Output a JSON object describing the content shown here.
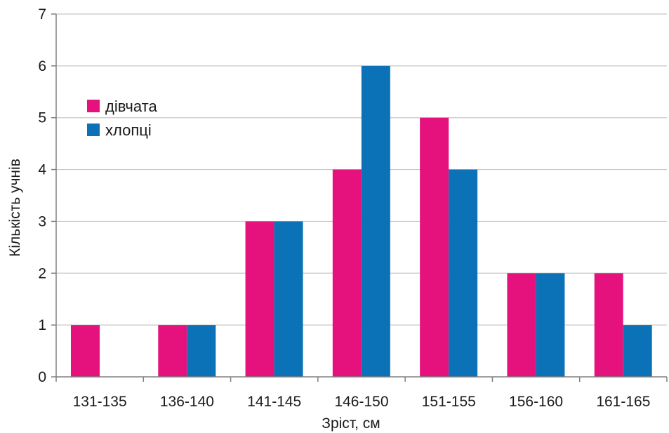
{
  "chart_data": {
    "type": "bar",
    "title": "",
    "xlabel": "Зріст, см",
    "ylabel": "Кількість учнів",
    "categories": [
      "131-135",
      "136-140",
      "141-145",
      "146-150",
      "151-155",
      "156-160",
      "161-165"
    ],
    "series": [
      {
        "name": "дівчата",
        "values": [
          1,
          1,
          3,
          4,
          5,
          2,
          2
        ],
        "color": "#e5127e"
      },
      {
        "name": "хлопці",
        "values": [
          0,
          1,
          3,
          6,
          4,
          2,
          1
        ],
        "color": "#0b72b8"
      }
    ],
    "ylim": [
      0,
      7
    ],
    "yticks": [
      0,
      1,
      2,
      3,
      4,
      5,
      6,
      7
    ],
    "grid": true,
    "legend_position": "top-left"
  }
}
